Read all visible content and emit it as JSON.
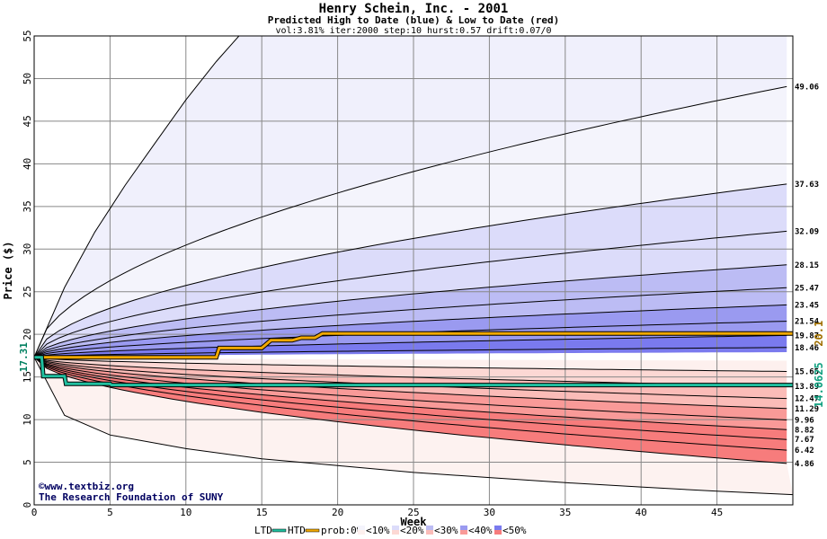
{
  "header": {
    "title": "Henry Schein, Inc. - 2001",
    "subtitle": "Predicted High to Date (blue) &  Low to Date (red)",
    "params": "vol:3.81% iter:2000 step:10 hurst:0.57 drift:0.07/0"
  },
  "credits": {
    "line1": "©www.textbiz.org",
    "line2": "The Research Foundation of SUNY"
  },
  "colors": {
    "htd": "#f0a800",
    "ltd": "#20c0a0",
    "prob_0": "#ffffff",
    "prob_10": "#f4f4fc",
    "prob_20": "#dcdcfa",
    "prob_30": "#bcbcf4",
    "prob_40": "#9a9af0",
    "prob_50": "#7a7aee",
    "red_10": "#fdf0ee",
    "red_20": "#fcd8d4",
    "red_30": "#fbbcb8",
    "red_40": "#f99a98",
    "red_50": "#f77c7c"
  },
  "legend": {
    "ltd": "LTD",
    "htd": "HTD",
    "prob": "prob:0%",
    "lt10": "<10%",
    "lt20": "<20%",
    "lt30": "<30%",
    "lt40": "<40%",
    "lt50": "<50%"
  },
  "chart_data": {
    "type": "line",
    "xlabel": "Week",
    "ylabel": "Price ($)",
    "xlim": [
      0,
      50
    ],
    "ylim": [
      0,
      55
    ],
    "xticks": [
      "0",
      "5",
      "10",
      "15",
      "20",
      "25",
      "30",
      "35",
      "40",
      "45"
    ],
    "yticks": [
      "0",
      "5",
      "10",
      "15",
      "20",
      "25",
      "30",
      "35",
      "40",
      "45",
      "50",
      "55"
    ],
    "grid": true,
    "start_price": 17.31,
    "start_label": "17.31",
    "htd_label": "20.1",
    "ltd_label": "14.0625",
    "high_bands": [
      {
        "end": 49.06,
        "label": "49.06"
      },
      {
        "end": 37.63,
        "label": "37.63"
      },
      {
        "end": 32.09,
        "label": "32.09"
      },
      {
        "end": 28.15,
        "label": "28.15"
      },
      {
        "end": 25.47,
        "label": "25.47"
      },
      {
        "end": 23.45,
        "label": "23.45"
      },
      {
        "end": 21.54,
        "label": "21.54"
      },
      {
        "end": 19.87,
        "label": "19.87"
      },
      {
        "end": 18.46,
        "label": "18.46"
      }
    ],
    "low_bands": [
      {
        "end": 15.65,
        "label": "15.65"
      },
      {
        "end": 13.89,
        "label": "13.89"
      },
      {
        "end": 12.47,
        "label": "12.47"
      },
      {
        "end": 11.29,
        "label": "11.29"
      },
      {
        "end": 9.96,
        "label": "9.96"
      },
      {
        "end": 8.82,
        "label": "8.82"
      },
      {
        "end": 7.67,
        "label": "7.67"
      },
      {
        "end": 6.42,
        "label": "6.42"
      },
      {
        "end": 4.86,
        "label": "4.86"
      }
    ],
    "outer_upper": {
      "x": [
        0,
        2,
        4,
        6,
        8,
        10,
        12,
        14
      ],
      "y": [
        17.31,
        25.5,
        32,
        37.5,
        42.5,
        47.5,
        52,
        56
      ]
    },
    "outer_lower": {
      "x": [
        0,
        2,
        5,
        10,
        15,
        20,
        25,
        30,
        35,
        40,
        45,
        50
      ],
      "y": [
        17.31,
        10.5,
        8.2,
        6.6,
        5.4,
        4.6,
        3.8,
        3.2,
        2.6,
        2.1,
        1.6,
        1.2
      ]
    },
    "htd": {
      "x": [
        0,
        12,
        12.2,
        15,
        15.6,
        17,
        17.6,
        18.5,
        19,
        22,
        50
      ],
      "y": [
        17.31,
        17.31,
        18.4,
        18.4,
        19.3,
        19.3,
        19.6,
        19.6,
        20.1,
        20.1,
        20.1
      ]
    },
    "ltd": {
      "x": [
        0,
        0.5,
        0.6,
        2,
        2.1,
        5,
        5.1,
        50
      ],
      "y": [
        17.31,
        17.31,
        15.1,
        15.1,
        14.2,
        14.2,
        14.06,
        14.06
      ]
    }
  }
}
